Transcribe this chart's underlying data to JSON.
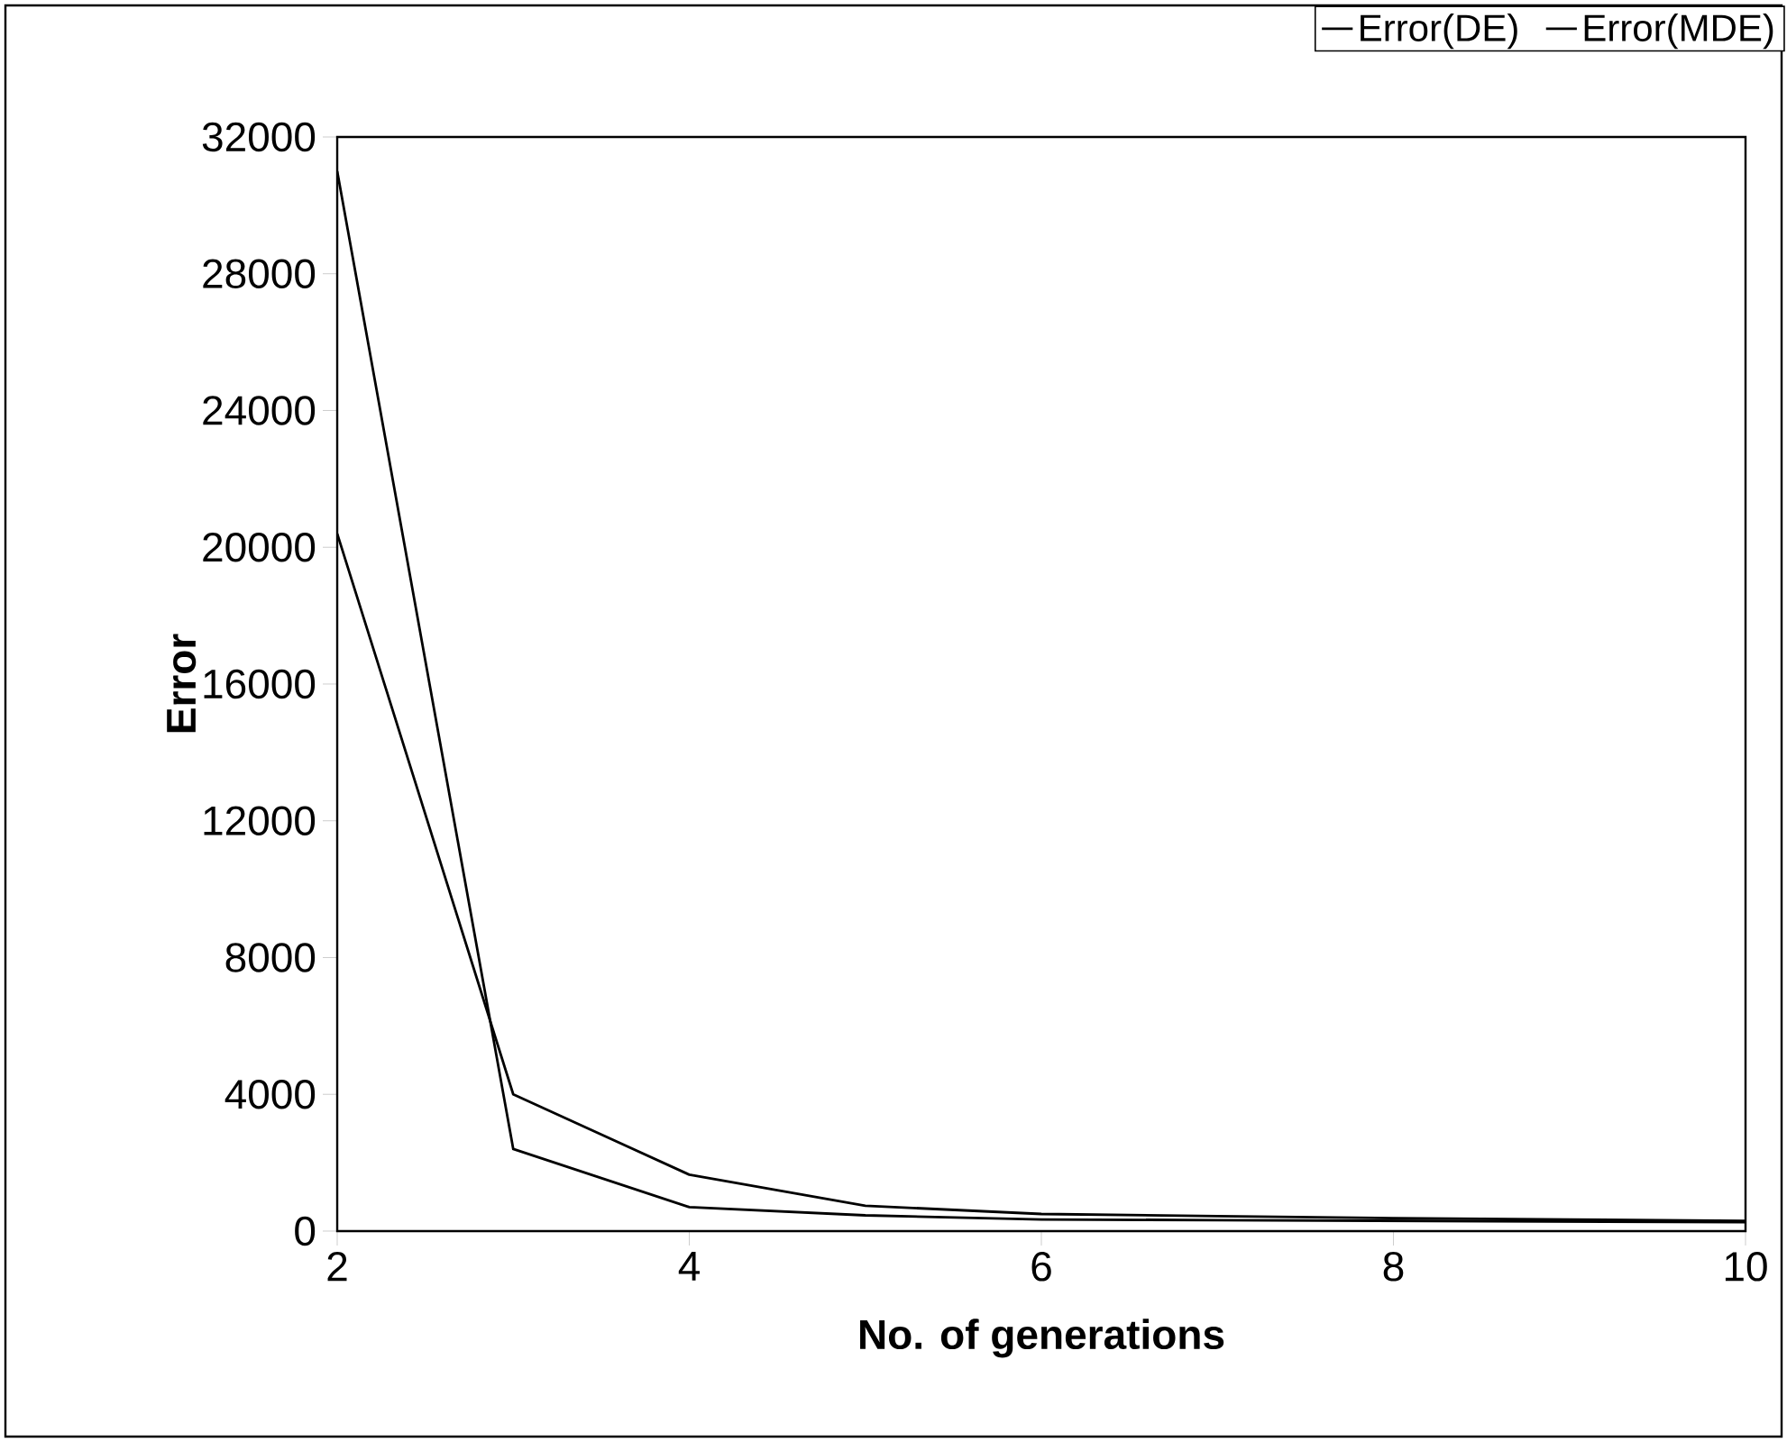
{
  "chart_data": {
    "type": "line",
    "xlabel": "No. of generations",
    "ylabel": "Error",
    "x": [
      2,
      3,
      4,
      5,
      6,
      7,
      8,
      9,
      10
    ],
    "series": [
      {
        "name": "Error(DE)",
        "color": "#000000",
        "values": [
          31000,
          2400,
          700,
          460,
          340,
          320,
          300,
          280,
          260
        ]
      },
      {
        "name": "Error(MDE)",
        "color": "#000000",
        "values": [
          20400,
          4000,
          1650,
          740,
          500,
          440,
          380,
          340,
          300
        ]
      }
    ],
    "xlim": [
      2,
      10
    ],
    "ylim": [
      0,
      32000
    ],
    "xticks": [
      2,
      4,
      6,
      8,
      10
    ],
    "yticks": [
      0,
      4000,
      8000,
      12000,
      16000,
      20000,
      24000,
      28000,
      32000
    ],
    "grid": false,
    "legend": "top right",
    "marker": "none",
    "line_style": "solid"
  }
}
